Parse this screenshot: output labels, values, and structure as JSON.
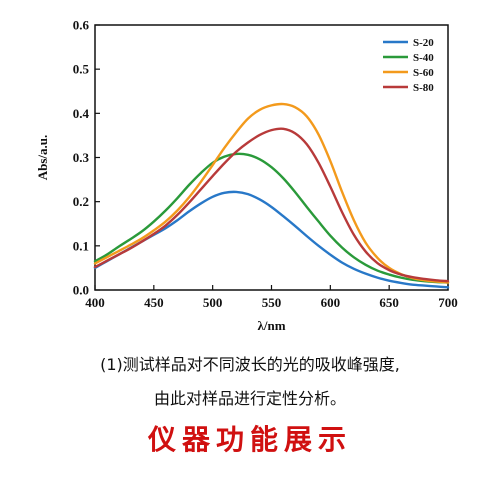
{
  "chart_data": {
    "type": "line",
    "xlabel": "λ/nm",
    "ylabel": "Abs/a.u.",
    "xlim": [
      400,
      700
    ],
    "ylim": [
      0,
      0.6
    ],
    "xticks": [
      "400",
      "450",
      "500",
      "550",
      "600",
      "650",
      "700"
    ],
    "yticks": [
      "0.0",
      "0.1",
      "0.2",
      "0.3",
      "0.4",
      "0.5",
      "0.6"
    ],
    "grid": false,
    "legend_position": "top-right",
    "x": [
      400,
      410,
      420,
      430,
      440,
      450,
      460,
      470,
      480,
      490,
      500,
      510,
      520,
      530,
      540,
      550,
      560,
      570,
      580,
      590,
      600,
      610,
      620,
      630,
      640,
      650,
      660,
      670,
      680,
      690,
      700
    ],
    "series": [
      {
        "name": "S-20",
        "color": "#2878c8",
        "values": [
          0.05,
          0.065,
          0.08,
          0.095,
          0.11,
          0.125,
          0.14,
          0.158,
          0.178,
          0.196,
          0.211,
          0.22,
          0.222,
          0.217,
          0.205,
          0.188,
          0.167,
          0.145,
          0.122,
          0.1,
          0.08,
          0.062,
          0.048,
          0.037,
          0.028,
          0.021,
          0.016,
          0.012,
          0.01,
          0.008,
          0.006
        ]
      },
      {
        "name": "S-40",
        "color": "#2a9a3a",
        "values": [
          0.065,
          0.08,
          0.098,
          0.115,
          0.133,
          0.155,
          0.18,
          0.208,
          0.238,
          0.265,
          0.288,
          0.302,
          0.308,
          0.306,
          0.296,
          0.278,
          0.253,
          0.222,
          0.188,
          0.155,
          0.123,
          0.096,
          0.074,
          0.057,
          0.044,
          0.035,
          0.028,
          0.023,
          0.02,
          0.018,
          0.017
        ]
      },
      {
        "name": "S-60",
        "color": "#f39a1c",
        "values": [
          0.06,
          0.074,
          0.088,
          0.102,
          0.117,
          0.135,
          0.155,
          0.18,
          0.21,
          0.245,
          0.283,
          0.322,
          0.357,
          0.388,
          0.408,
          0.418,
          0.421,
          0.414,
          0.393,
          0.352,
          0.292,
          0.222,
          0.158,
          0.107,
          0.073,
          0.05,
          0.036,
          0.027,
          0.022,
          0.019,
          0.017
        ]
      },
      {
        "name": "S-80",
        "color": "#b83a3a",
        "values": [
          0.052,
          0.066,
          0.08,
          0.094,
          0.11,
          0.127,
          0.146,
          0.17,
          0.198,
          0.228,
          0.258,
          0.287,
          0.313,
          0.334,
          0.351,
          0.362,
          0.365,
          0.355,
          0.33,
          0.288,
          0.234,
          0.176,
          0.125,
          0.087,
          0.061,
          0.045,
          0.035,
          0.029,
          0.025,
          0.022,
          0.02
        ]
      }
    ]
  },
  "caption": {
    "line1": "(1)测试样品对不同波长的光的吸收峰强度,",
    "line2": "由此对样品进行定性分析。"
  },
  "banner": {
    "text": "仪器功能展示",
    "color": "#d01010"
  }
}
